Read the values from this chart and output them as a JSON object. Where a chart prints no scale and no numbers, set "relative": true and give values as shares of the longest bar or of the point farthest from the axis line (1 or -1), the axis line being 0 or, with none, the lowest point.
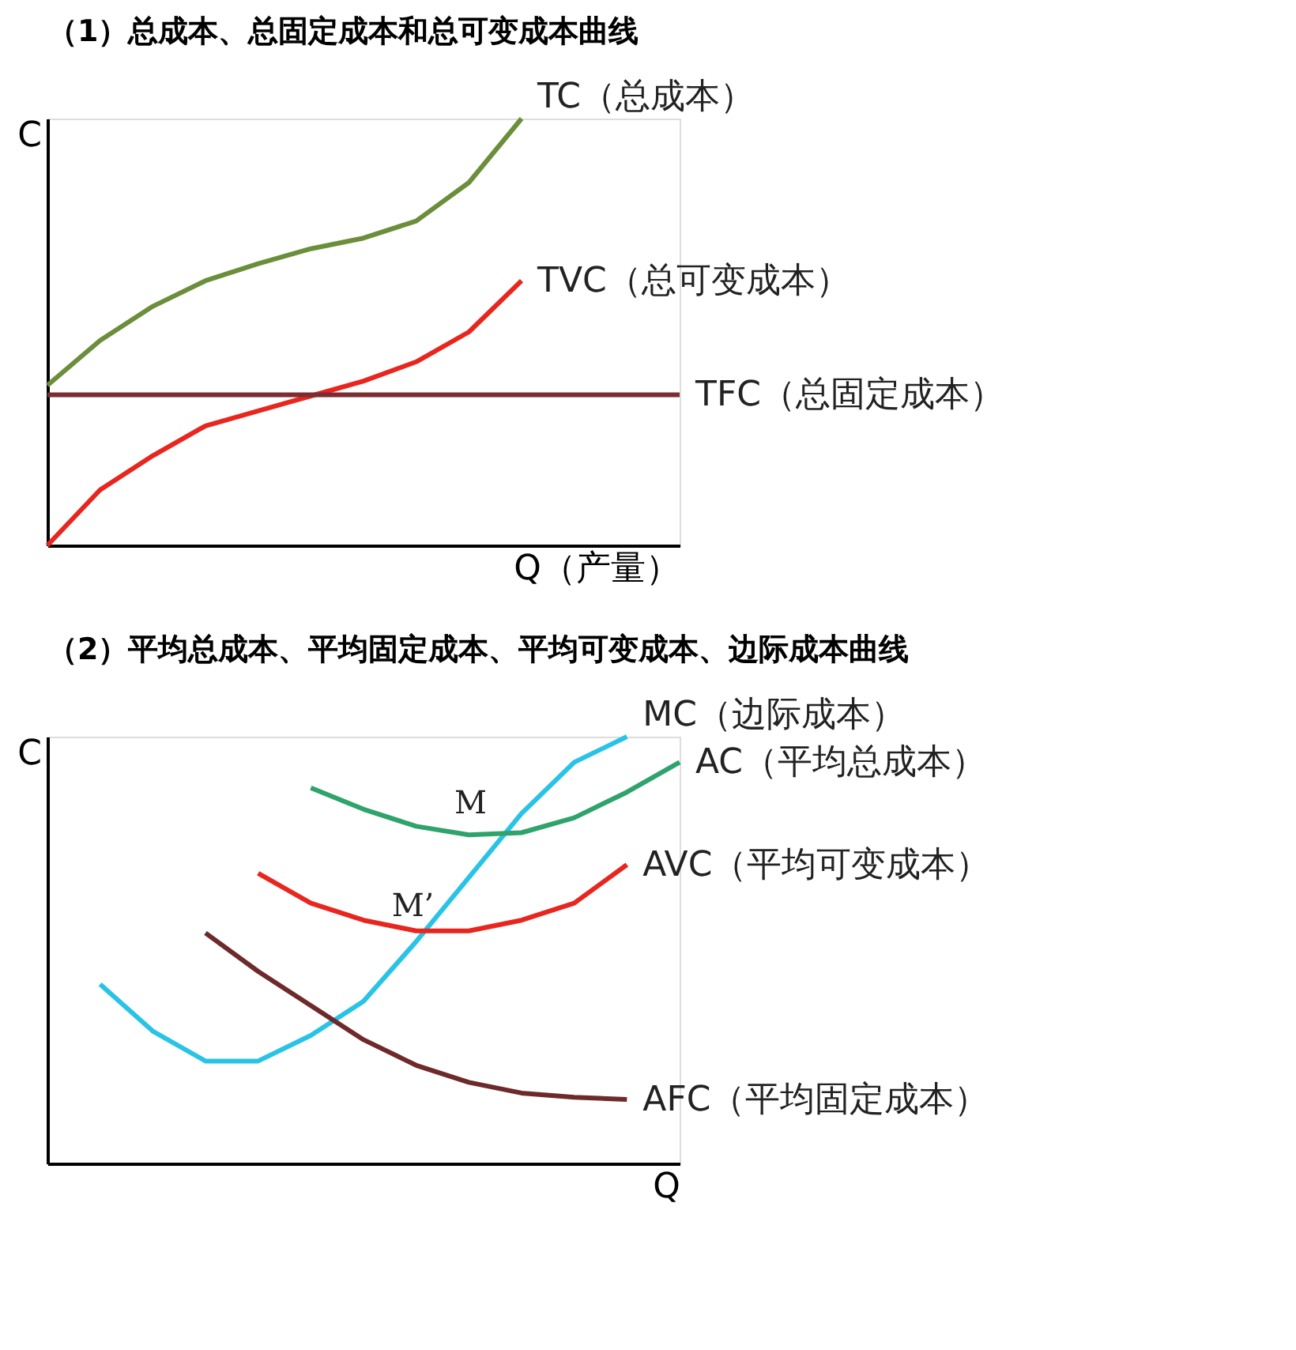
{
  "chart_data": [
    {
      "type": "line",
      "title": "（1）总成本、总固定成本和总可变成本曲线",
      "xlabel": "Q（产量）",
      "ylabel": "C",
      "relative": true,
      "tick_labels": false,
      "grid": false,
      "categories": [
        null,
        null,
        null,
        null,
        null,
        null,
        null,
        null,
        null,
        null,
        null,
        null,
        null
      ],
      "series": [
        {
          "name": "TC（总成本）",
          "color": "#6b8e3a",
          "values": [
            0.375,
            0.48,
            0.56,
            0.62,
            0.66,
            0.695,
            0.72,
            0.76,
            0.85,
            1.0,
            null,
            null,
            null
          ]
        },
        {
          "name": "TVC（总可变成本）",
          "color": "#e8261e",
          "values": [
            0,
            0.13,
            0.21,
            0.28,
            0.315,
            0.35,
            0.385,
            0.43,
            0.5,
            0.62,
            null,
            null,
            null
          ]
        },
        {
          "name": "TFC（总固定成本）",
          "color": "#7b2d32",
          "values": [
            0.353,
            0.353,
            0.353,
            0.353,
            0.353,
            0.353,
            0.353,
            0.353,
            0.353,
            0.353,
            0.353,
            0.353,
            0.353
          ]
        }
      ]
    },
    {
      "type": "line",
      "title": "（2）平均总成本、平均固定成本、平均可变成本、边际成本曲线",
      "xlabel": "Q",
      "ylabel": "C",
      "relative": true,
      "tick_labels": false,
      "grid": false,
      "categories": [
        null,
        null,
        null,
        null,
        null,
        null,
        null,
        null,
        null,
        null,
        null,
        null,
        null
      ],
      "annotations": [
        {
          "text": "M",
          "y": 0.79
        },
        {
          "text": "M’",
          "y": 0.55
        }
      ],
      "series": [
        {
          "name": "MC（边际成本）",
          "color": "#29c3e6",
          "values": [
            null,
            0.42,
            0.31,
            0.24,
            0.24,
            0.3,
            0.38,
            0.52,
            0.67,
            0.82,
            0.94,
            1.0,
            null
          ]
        },
        {
          "name": "AC（平均总成本）",
          "color": "#2ea36b",
          "values": [
            null,
            null,
            null,
            null,
            null,
            0.88,
            0.83,
            0.79,
            0.77,
            0.775,
            0.81,
            0.87,
            0.94
          ]
        },
        {
          "name": "AVC（平均可变成本）",
          "color": "#e8261e",
          "values": [
            null,
            null,
            null,
            null,
            0.68,
            0.61,
            0.57,
            0.545,
            0.545,
            0.57,
            0.61,
            0.7,
            null
          ]
        },
        {
          "name": "AFC（平均固定成本）",
          "color": "#6e2a2a",
          "values": [
            null,
            null,
            null,
            0.54,
            0.45,
            0.37,
            0.29,
            0.23,
            0.19,
            0.165,
            0.155,
            0.15,
            null
          ]
        }
      ]
    }
  ]
}
